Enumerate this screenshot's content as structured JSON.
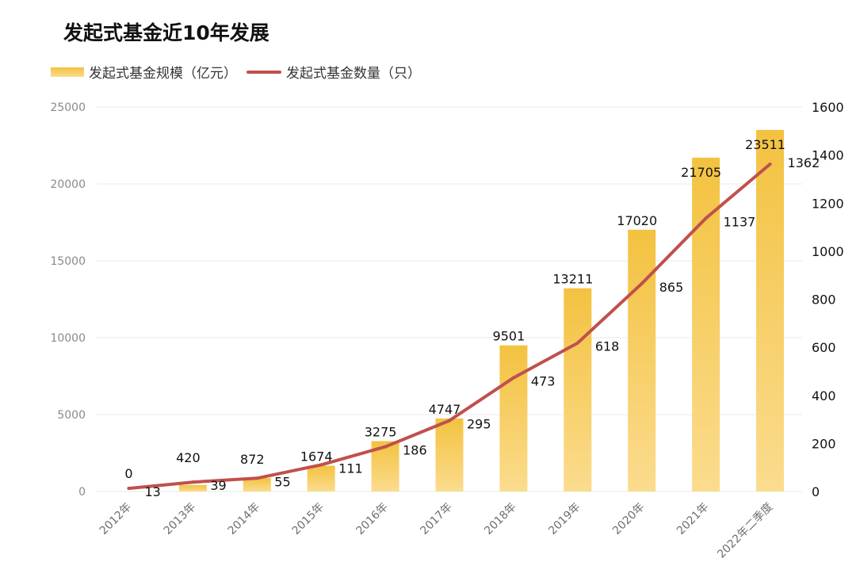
{
  "chart_data": {
    "type": "bar",
    "title": "发起式基金近10年发展",
    "categories": [
      "2012年",
      "2013年",
      "2014年",
      "2015年",
      "2016年",
      "2017年",
      "2018年",
      "2019年",
      "2020年",
      "2021年",
      "2022年二季度"
    ],
    "series": [
      {
        "name": "发起式基金规模（亿元）",
        "type": "bar",
        "axis": "left",
        "values": [
          0,
          420,
          872,
          1674,
          3275,
          4747,
          9501,
          13211,
          17020,
          21705,
          23511
        ]
      },
      {
        "name": "发起式基金数量（只）",
        "type": "line",
        "axis": "right",
        "values": [
          13,
          39,
          55,
          111,
          186,
          295,
          473,
          618,
          865,
          1137,
          1362
        ]
      }
    ],
    "y_left": {
      "ticks": [
        "0",
        "5000",
        "10000",
        "15000",
        "20000",
        "25000"
      ],
      "ylim": [
        0,
        25000
      ]
    },
    "y_right": {
      "ticks": [
        "0",
        "200",
        "400",
        "600",
        "800",
        "1000",
        "1200",
        "1400",
        "1600"
      ],
      "ylim": [
        0,
        1600
      ]
    },
    "grid": true,
    "legend_position": "top-left",
    "colors": {
      "bar_top": "#f3c240",
      "bar_bottom": "#fbdc8e",
      "line": "#c0504d",
      "grid": "#e8e8e8"
    }
  }
}
